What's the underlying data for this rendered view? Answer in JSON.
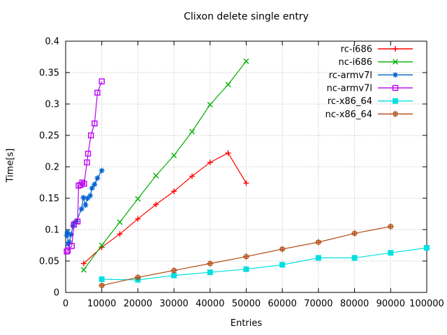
{
  "window": {
    "background": "#ffffff",
    "border_color": "#000000"
  },
  "chart_data": {
    "type": "line",
    "title": "Clixon delete single entry",
    "xlabel": "Entries",
    "ylabel": "Time[s]",
    "xlim": [
      0,
      100000
    ],
    "ylim": [
      0,
      0.4
    ],
    "grid": true,
    "grid_color": "#b8b8b8",
    "legend_position": "top-right-inside",
    "xticks": [
      {
        "v": 0,
        "label": "0"
      },
      {
        "v": 10000,
        "label": "10000"
      },
      {
        "v": 20000,
        "label": "20000"
      },
      {
        "v": 30000,
        "label": "30000"
      },
      {
        "v": 40000,
        "label": "40000"
      },
      {
        "v": 50000,
        "label": "50000"
      },
      {
        "v": 60000,
        "label": "60000"
      },
      {
        "v": 70000,
        "label": "70000"
      },
      {
        "v": 80000,
        "label": "80000"
      },
      {
        "v": 90000,
        "label": "90000"
      },
      {
        "v": 100000,
        "label": "100000"
      }
    ],
    "yticks": [
      {
        "v": 0,
        "label": "0"
      },
      {
        "v": 0.05,
        "label": "0.05"
      },
      {
        "v": 0.1,
        "label": "0.1"
      },
      {
        "v": 0.15,
        "label": "0.15"
      },
      {
        "v": 0.2,
        "label": "0.2"
      },
      {
        "v": 0.25,
        "label": "0.25"
      },
      {
        "v": 0.3,
        "label": "0.3"
      },
      {
        "v": 0.35,
        "label": "0.35"
      },
      {
        "v": 0.4,
        "label": "0.4"
      }
    ],
    "series": [
      {
        "name": "rc-i686",
        "color": "#ff0000",
        "marker": "plus",
        "points": [
          [
            5000,
            0.046
          ],
          [
            10000,
            0.072
          ],
          [
            15000,
            0.093
          ],
          [
            20000,
            0.117
          ],
          [
            25000,
            0.14
          ],
          [
            30000,
            0.161
          ],
          [
            35000,
            0.185
          ],
          [
            40000,
            0.207
          ],
          [
            45000,
            0.222
          ],
          [
            50000,
            0.174
          ]
        ]
      },
      {
        "name": "nc-i686",
        "color": "#00b000",
        "marker": "cross",
        "points": [
          [
            5000,
            0.036
          ],
          [
            10000,
            0.075
          ],
          [
            15000,
            0.112
          ],
          [
            20000,
            0.149
          ],
          [
            25000,
            0.186
          ],
          [
            30000,
            0.218
          ],
          [
            35000,
            0.256
          ],
          [
            40000,
            0.299
          ],
          [
            45000,
            0.331
          ],
          [
            50000,
            0.368
          ]
        ]
      },
      {
        "name": "rc-armv7l",
        "color": "#0060d0",
        "marker": "asterisk",
        "points": [
          [
            300,
            0.091
          ],
          [
            500,
            0.096
          ],
          [
            700,
            0.077
          ],
          [
            1000,
            0.08
          ],
          [
            1500,
            0.092
          ],
          [
            2000,
            0.106
          ],
          [
            2500,
            0.111
          ],
          [
            3000,
            0.113
          ],
          [
            4400,
            0.133
          ],
          [
            4900,
            0.151
          ],
          [
            5500,
            0.139
          ],
          [
            6100,
            0.15
          ],
          [
            6800,
            0.154
          ],
          [
            7300,
            0.166
          ],
          [
            8000,
            0.172
          ],
          [
            8800,
            0.182
          ],
          [
            10000,
            0.194
          ]
        ]
      },
      {
        "name": "nc-armv7l",
        "color": "#bb00ee",
        "marker": "square-open",
        "points": [
          [
            300,
            0.065
          ],
          [
            600,
            0.067
          ],
          [
            1700,
            0.074
          ],
          [
            2300,
            0.108
          ],
          [
            3300,
            0.113
          ],
          [
            3600,
            0.17
          ],
          [
            4100,
            0.171
          ],
          [
            4600,
            0.175
          ],
          [
            5100,
            0.173
          ],
          [
            5900,
            0.207
          ],
          [
            6200,
            0.221
          ],
          [
            7000,
            0.25
          ],
          [
            8000,
            0.269
          ],
          [
            8800,
            0.318
          ],
          [
            10000,
            0.336
          ]
        ]
      },
      {
        "name": "rc-x86_64",
        "color": "#00e0e0",
        "marker": "square-filled",
        "points": [
          [
            10000,
            0.021
          ],
          [
            20000,
            0.02
          ],
          [
            30000,
            0.027
          ],
          [
            40000,
            0.032
          ],
          [
            50000,
            0.037
          ],
          [
            60000,
            0.044
          ],
          [
            70000,
            0.055
          ],
          [
            80000,
            0.055
          ],
          [
            90000,
            0.063
          ],
          [
            100000,
            0.071
          ]
        ]
      },
      {
        "name": "nc-x86_64",
        "color": "#b04a10",
        "marker": "box-plus",
        "points": [
          [
            10000,
            0.011
          ],
          [
            20000,
            0.024
          ],
          [
            30000,
            0.035
          ],
          [
            40000,
            0.046
          ],
          [
            50000,
            0.057
          ],
          [
            60000,
            0.069
          ],
          [
            70000,
            0.08
          ],
          [
            80000,
            0.094
          ],
          [
            90000,
            0.105
          ]
        ]
      }
    ]
  }
}
